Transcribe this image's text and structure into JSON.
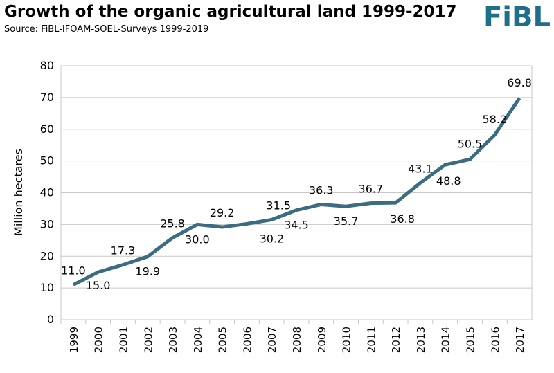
{
  "chart_data": {
    "type": "line",
    "title": "Growth of the organic agricultural land 1999-2017",
    "subtitle": "Source: FiBL-IFOAM-SOEL-Surveys 1999-2019",
    "logo": "FiBL",
    "y_label": "Million hectares",
    "categories": [
      "1999",
      "2000",
      "2001",
      "2002",
      "2003",
      "2004",
      "2005",
      "2006",
      "2007",
      "2008",
      "2009",
      "2010",
      "2011",
      "2012",
      "2013",
      "2014",
      "2015",
      "2016",
      "2017"
    ],
    "series": [
      {
        "name": "Organic agricultural land",
        "color": "#3b6c82",
        "values": [
          11.0,
          15.0,
          17.3,
          19.9,
          25.8,
          30.0,
          29.2,
          30.2,
          31.5,
          34.5,
          36.3,
          35.7,
          36.7,
          36.8,
          43.1,
          48.8,
          50.5,
          58.2,
          69.8
        ],
        "value_labels": [
          "11.0",
          "15.0",
          "17.3",
          "19.9",
          "25.8",
          "30.0",
          "29.2",
          "30.2",
          "31.5",
          "34.5",
          "36.3",
          "35.7",
          "36.7",
          "36.8",
          "43.1",
          "48.8",
          "50.5",
          "58.2",
          "69.8"
        ]
      }
    ],
    "ylim": [
      0,
      80
    ],
    "yticks": [
      0,
      10,
      20,
      30,
      40,
      50,
      60,
      70,
      80
    ],
    "grid": true
  }
}
